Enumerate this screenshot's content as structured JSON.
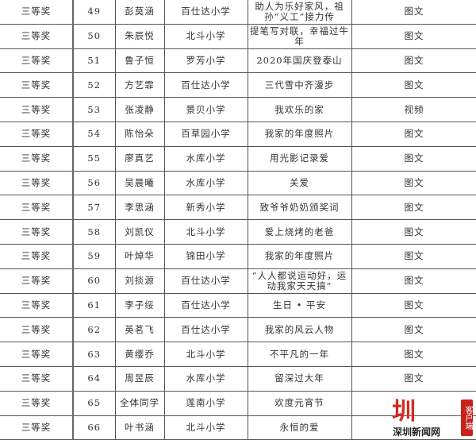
{
  "rows": [
    {
      "prize": "三等奖",
      "no": "49",
      "name": "彭莫涵",
      "school": "百仕达小学",
      "title": "助人为乐好家风，祖孙“义工”接力传",
      "type": "图文"
    },
    {
      "prize": "三等奖",
      "no": "50",
      "name": "朱辰悦",
      "school": "北斗小学",
      "title": "提笔写对联，幸福过牛年",
      "type": "图文"
    },
    {
      "prize": "三等奖",
      "no": "51",
      "name": "鲁子恒",
      "school": "罗芳小学",
      "title": "2020年国庆登泰山",
      "type": "图文"
    },
    {
      "prize": "三等奖",
      "no": "52",
      "name": "方艺霏",
      "school": "百仕达小学",
      "title": "三代雪中齐漫步",
      "type": "图文"
    },
    {
      "prize": "三等奖",
      "no": "53",
      "name": "张凌静",
      "school": "景贝小学",
      "title": "我欢乐的家",
      "type": "视频"
    },
    {
      "prize": "三等奖",
      "no": "54",
      "name": "陈怡朵",
      "school": "百草园小学",
      "title": "我家的年度照片",
      "type": "图文"
    },
    {
      "prize": "三等奖",
      "no": "55",
      "name": "廖真艺",
      "school": "水库小学",
      "title": "用光影记录爱",
      "type": "图文"
    },
    {
      "prize": "三等奖",
      "no": "56",
      "name": "吴晨曦",
      "school": "水库小学",
      "title": "关爱",
      "type": "图文"
    },
    {
      "prize": "三等奖",
      "no": "57",
      "name": "李思涵",
      "school": "新秀小学",
      "title": "致爷爷奶奶颁奖词",
      "type": "图文"
    },
    {
      "prize": "三等奖",
      "no": "58",
      "name": "刘凯仪",
      "school": "北斗小学",
      "title": "爱上烧烤的老爸",
      "type": "图文"
    },
    {
      "prize": "三等奖",
      "no": "59",
      "name": "叶焯华",
      "school": "锦田小学",
      "title": "我家的年度照片",
      "type": "图文"
    },
    {
      "prize": "三等奖",
      "no": "60",
      "name": "刘掞源",
      "school": "百仕达小学",
      "title": "“人人都说运动好，运动我家天天搞”",
      "type": "图文"
    },
    {
      "prize": "三等奖",
      "no": "61",
      "name": "李子绥",
      "school": "百仕达小学",
      "title": "生日 • 平安",
      "type": "图文"
    },
    {
      "prize": "三等奖",
      "no": "62",
      "name": "英茗飞",
      "school": "百仕达小学",
      "title": "我家的风云人物",
      "type": "图文"
    },
    {
      "prize": "三等奖",
      "no": "63",
      "name": "黄缨乔",
      "school": "北斗小学",
      "title": "不平凡的一年",
      "type": "图文"
    },
    {
      "prize": "三等奖",
      "no": "64",
      "name": "周昱辰",
      "school": "水库小学",
      "title": "留深过大年",
      "type": "图文"
    },
    {
      "prize": "三等奖",
      "no": "65",
      "name": "全体同学",
      "school": "莲南小学",
      "title": "欢度元宵节",
      "type": ""
    },
    {
      "prize": "三等奖",
      "no": "66",
      "name": "叶书涵",
      "school": "北斗小学",
      "title": "永恒的爱",
      "type": ""
    }
  ],
  "watermark": {
    "logo": "圳",
    "name": "深圳新闻网",
    "tag": "客户端",
    "color": "#d42a1e"
  }
}
